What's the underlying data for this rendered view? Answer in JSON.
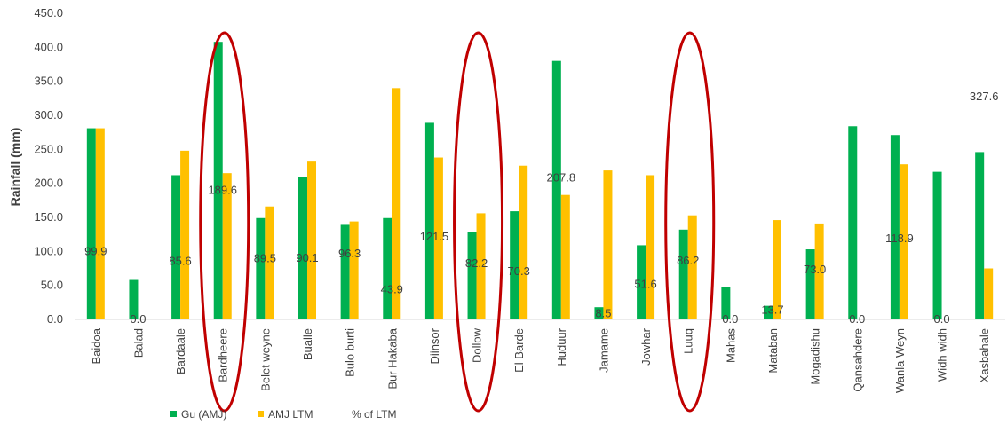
{
  "chart_data": {
    "type": "bar",
    "ylabel": "Rainfall (mm)",
    "xlabel": "",
    "title": "",
    "ylim": [
      0,
      450
    ],
    "yticks": [
      "0.0",
      "50.0",
      "100.0",
      "150.0",
      "200.0",
      "250.0",
      "300.0",
      "350.0",
      "400.0",
      "450.0"
    ],
    "categories": [
      "Baidoa",
      "Balad",
      "Bardaale",
      "Bardheere",
      "Belet weyne",
      "Bualle",
      "Bulo burti",
      "Bur Hakaba",
      "Diinsor",
      "Dollow",
      "El Barde",
      "Huduur",
      "Jamame",
      "Jowhar",
      "Luuq",
      "Mahas",
      "Mataban",
      "Mogadishu",
      "Qansahdere",
      "Wanla Weyn",
      "Widh widh",
      "Xasbahale"
    ],
    "series": [
      {
        "name": "Gu (AMJ)",
        "color": "#00B050",
        "values": [
          281,
          58,
          212,
          408,
          149,
          209,
          139,
          149,
          289,
          128,
          159,
          380,
          18,
          109,
          132,
          48,
          20,
          103,
          284,
          271,
          217,
          246
        ]
      },
      {
        "name": "AMJ LTM",
        "color": "#FFC000",
        "values": [
          281,
          0,
          248,
          215,
          166,
          232,
          144,
          340,
          238,
          156,
          226,
          183,
          219,
          212,
          153,
          0,
          146,
          141,
          0,
          228,
          0,
          75
        ]
      }
    ],
    "percent_series": {
      "name": "% of LTM",
      "labels": [
        "99.9",
        "0.0",
        "85.6",
        "189.6",
        "89.5",
        "90.1",
        "96.3",
        "43.9",
        "121.5",
        "82.2",
        "70.3",
        "207.8",
        "8.5",
        "51.6",
        "86.2",
        "0.0",
        "13.7",
        "73.0",
        "0.0",
        "118.9",
        "0.0",
        "327.6"
      ],
      "values": [
        99.9,
        0.0,
        85.6,
        189.6,
        89.5,
        90.1,
        96.3,
        43.9,
        121.5,
        82.2,
        70.3,
        207.8,
        8.5,
        51.6,
        86.2,
        0.0,
        13.7,
        73.0,
        0.0,
        118.9,
        0.0,
        327.6
      ]
    },
    "highlighted_categories": [
      "Bardheere",
      "Dollow",
      "Luuq"
    ],
    "highlight_color": "#C00000",
    "grid": false,
    "legend_position": "bottom-left"
  }
}
